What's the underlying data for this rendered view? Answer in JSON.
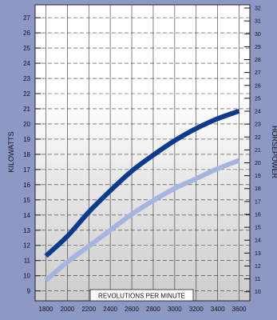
{
  "chart_data": {
    "type": "line",
    "xlabel": "REVOLUTIONS PER MINUTE",
    "ylabel": "KILOWATTS",
    "y2label": "HORSEPOWER",
    "x_ticks": [
      "1800",
      "2000",
      "2200",
      "2400",
      "2600",
      "2800",
      "3000",
      "3200",
      "3400",
      "3600"
    ],
    "xlim": [
      1700,
      3700
    ],
    "y_ticks": [
      "9",
      "10",
      "11",
      "12",
      "13",
      "14",
      "15",
      "16",
      "17",
      "18",
      "19",
      "20",
      "21",
      "22",
      "23",
      "24",
      "25",
      "26",
      "27"
    ],
    "ylim": [
      8.35,
      27.85
    ],
    "y2_ticks": [
      "10",
      "11",
      "12",
      "13",
      "14",
      "15",
      "16",
      "17",
      "18",
      "19",
      "20",
      "21",
      "22",
      "23",
      "24",
      "25",
      "26",
      "27",
      "28",
      "29",
      "30",
      "31",
      "32"
    ],
    "y2lim": [
      9.3,
      32.25
    ],
    "grid": true,
    "legend": "none",
    "series": [
      {
        "color": "#0d3a8c",
        "x": [
          1800,
          2000,
          2200,
          2400,
          2600,
          2800,
          3000,
          3200,
          3400,
          3600
        ],
        "y": [
          11.3,
          12.6,
          14.2,
          15.6,
          16.9,
          17.95,
          18.9,
          19.7,
          20.35,
          20.85
        ]
      },
      {
        "color": "#a8b4e0",
        "x": [
          1800,
          2000,
          2200,
          2400,
          2600,
          2800,
          3000,
          3200,
          3400,
          3600
        ],
        "y": [
          9.7,
          10.9,
          11.95,
          13.0,
          14.05,
          14.95,
          15.75,
          16.4,
          17.05,
          17.6
        ]
      }
    ]
  }
}
